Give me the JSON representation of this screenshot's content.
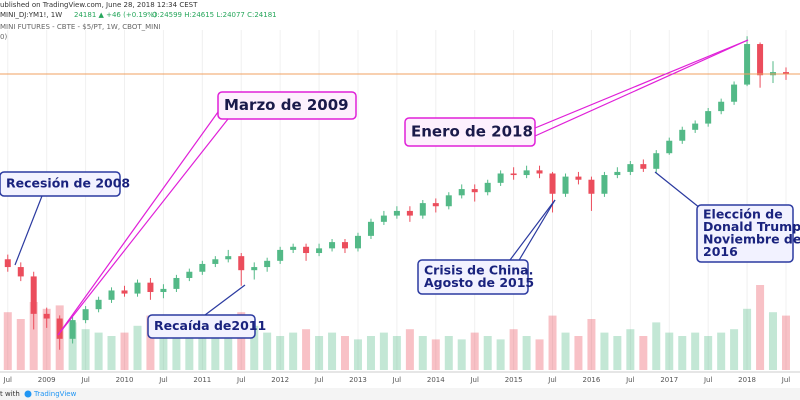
{
  "header": {
    "published": "ublished on TradingView.com, June 28, 2018 12:34 CEST",
    "symbol": "MINI_DJ:YM1!, 1W",
    "quote": "24181 ▲ +46 (+0.19%)",
    "ohlc": "O:24599 H:24615 L:24077 C:24181",
    "description": "MINI FUTURES - CBTE - $5/PT, 1W, CBOT_MINI",
    "extra": "0)"
  },
  "footer": {
    "text": "t with",
    "brand": "TradingView"
  },
  "chart_data": {
    "type": "candlestick",
    "x": [
      2008.5,
      2008.667,
      2008.833,
      2009,
      2009.167,
      2009.333,
      2009.5,
      2009.667,
      2009.833,
      2010,
      2010.167,
      2010.333,
      2010.5,
      2010.667,
      2010.833,
      2011,
      2011.167,
      2011.333,
      2011.5,
      2011.667,
      2011.833,
      2012,
      2012.167,
      2012.333,
      2012.5,
      2012.667,
      2012.833,
      2013,
      2013.167,
      2013.333,
      2013.5,
      2013.667,
      2013.833,
      2014,
      2014.167,
      2014.333,
      2014.5,
      2014.667,
      2014.833,
      2015,
      2015.167,
      2015.333,
      2015.5,
      2015.667,
      2015.833,
      2016,
      2016.167,
      2016.333,
      2016.5,
      2016.667,
      2016.833,
      2017,
      2017.167,
      2017.333,
      2017.5,
      2017.667,
      2017.833,
      2018,
      2018.167,
      2018.333,
      2018.5
    ],
    "open": [
      12300,
      11800,
      11200,
      8800,
      8500,
      7200,
      8400,
      9100,
      9700,
      10300,
      10100,
      10800,
      10200,
      10400,
      11100,
      11500,
      12000,
      12300,
      12500,
      11600,
      11800,
      12200,
      12900,
      13100,
      12700,
      13000,
      13400,
      13000,
      13800,
      14700,
      15100,
      15400,
      15100,
      15900,
      15700,
      16400,
      16800,
      16600,
      17200,
      17800,
      17700,
      18000,
      17800,
      16500,
      17600,
      17400,
      16500,
      17700,
      17900,
      18400,
      18100,
      19100,
      19900,
      20600,
      21000,
      21800,
      22400,
      23500,
      26100,
      24100,
      24300
    ],
    "high": [
      12600,
      12100,
      11500,
      9200,
      8700,
      8600,
      9300,
      9900,
      10500,
      10600,
      11000,
      11100,
      10700,
      11300,
      11700,
      12200,
      12500,
      12900,
      12700,
      12100,
      12400,
      13100,
      13300,
      13300,
      13300,
      13600,
      13600,
      14000,
      14900,
      15400,
      15700,
      15700,
      16100,
      16200,
      16600,
      17100,
      17100,
      17400,
      18000,
      18200,
      18300,
      18300,
      17900,
      17800,
      17900,
      17600,
      17900,
      18200,
      18600,
      18700,
      19300,
      20100,
      20800,
      21200,
      22000,
      22600,
      23700,
      26600,
      26200,
      25000,
      24600
    ],
    "low": [
      11500,
      10900,
      7800,
      7900,
      6500,
      6900,
      8200,
      8900,
      9500,
      9900,
      9900,
      9700,
      9800,
      10200,
      10900,
      11300,
      11800,
      12100,
      10600,
      11000,
      11500,
      12000,
      12700,
      12200,
      12500,
      12800,
      12700,
      12800,
      13600,
      14500,
      14900,
      14700,
      14900,
      15300,
      15500,
      16200,
      16000,
      16400,
      17000,
      17400,
      17500,
      17500,
      15300,
      16300,
      17100,
      15400,
      16300,
      17500,
      17700,
      17900,
      17800,
      19000,
      19700,
      20400,
      20800,
      21600,
      22200,
      23400,
      23300,
      23600,
      23800
    ],
    "close": [
      11800,
      11200,
      8800,
      8500,
      7200,
      8400,
      9100,
      9700,
      10300,
      10100,
      10800,
      10200,
      10400,
      11100,
      11500,
      12000,
      12300,
      12500,
      11600,
      11800,
      12200,
      12900,
      13100,
      12700,
      13000,
      13400,
      13000,
      13800,
      14700,
      15100,
      15400,
      15100,
      15900,
      15700,
      16400,
      16800,
      16600,
      17200,
      17800,
      17700,
      18000,
      17800,
      16500,
      17600,
      17400,
      16500,
      17700,
      17900,
      18400,
      18100,
      19100,
      19900,
      20600,
      21000,
      21800,
      22400,
      23500,
      26100,
      24100,
      24300,
      24200
    ],
    "volume": [
      170000,
      150000,
      200000,
      180000,
      190000,
      140000,
      120000,
      110000,
      100000,
      110000,
      130000,
      160000,
      120000,
      110000,
      100000,
      120000,
      110000,
      100000,
      170000,
      130000,
      110000,
      100000,
      110000,
      120000,
      100000,
      110000,
      100000,
      90000,
      100000,
      110000,
      100000,
      120000,
      100000,
      90000,
      100000,
      90000,
      110000,
      100000,
      90000,
      120000,
      100000,
      90000,
      160000,
      110000,
      100000,
      150000,
      110000,
      100000,
      120000,
      100000,
      140000,
      110000,
      100000,
      110000,
      100000,
      110000,
      120000,
      180000,
      250000,
      170000,
      160000
    ],
    "up_color": "#53b987",
    "down_color": "#eb4d5c",
    "price_line": 24181,
    "price_line_color": "#f0a060",
    "xlim": [
      2008.4,
      2018.68
    ],
    "ylim": [
      5200,
      27000
    ],
    "y2lim": [
      0,
      1000000
    ],
    "xticks": [
      {
        "value": 2008.5,
        "label": "Jul"
      },
      2009,
      {
        "value": 2009.5,
        "label": "Jul"
      },
      2010,
      {
        "value": 2010.5,
        "label": "Jul"
      },
      2011,
      {
        "value": 2011.5,
        "label": "Jul"
      },
      2012,
      {
        "value": 2012.5,
        "label": "Jul"
      },
      2013,
      {
        "value": 2013.5,
        "label": "Jul"
      },
      2014,
      {
        "value": 2014.5,
        "label": "Jul"
      },
      2015,
      {
        "value": 2015.5,
        "label": "Jul"
      },
      2016,
      {
        "value": 2016.5,
        "label": "Jul"
      },
      2017,
      {
        "value": 2017.5,
        "label": "Jul"
      },
      2018,
      {
        "value": 2018.5,
        "label": "Jul"
      }
    ],
    "grid": true,
    "annotations": [
      {
        "lines": [
          "Recesión de 2008"
        ],
        "color": "#2b3aa0"
      },
      {
        "lines": [
          "Marzo de 2009"
        ],
        "color": "#e020d8"
      },
      {
        "lines": [
          "Enero de 2018"
        ],
        "color": "#e020d8"
      },
      {
        "lines": [
          "Recaída de2011"
        ],
        "color": "#2b3aa0"
      },
      {
        "lines": [
          "Crisis de China.",
          "Agosto de 2015"
        ],
        "color": "#2b3aa0"
      },
      {
        "lines": [
          "Elección de",
          "Donald Trump",
          "Noviembre de",
          "2016"
        ],
        "color": "#2b3aa0"
      }
    ]
  }
}
